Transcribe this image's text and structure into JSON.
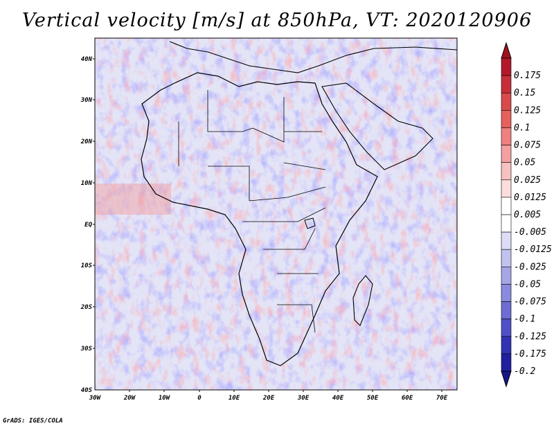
{
  "title": "Vertical velocity [m/s] at 850hPa, VT: 2020120906",
  "credit": "GrADS: IGES/COLA",
  "map": {
    "lat_labels": [
      "40N",
      "30N",
      "20N",
      "10N",
      "EQ",
      "10S",
      "20S",
      "30S",
      "40S"
    ],
    "lon_labels": [
      "30W",
      "20W",
      "10W",
      "0",
      "10E",
      "20E",
      "30E",
      "40E",
      "50E",
      "60E",
      "70E"
    ]
  },
  "colorbar": {
    "levels": [
      {
        "label": "0.175",
        "color": "#b2182b"
      },
      {
        "label": "0.15",
        "color": "#c62f39"
      },
      {
        "label": "0.125",
        "color": "#d94a4a"
      },
      {
        "label": "0.1",
        "color": "#e6605c"
      },
      {
        "label": "0.075",
        "color": "#ef8080"
      },
      {
        "label": "0.05",
        "color": "#f4a0a0"
      },
      {
        "label": "0.025",
        "color": "#f8c0c0"
      },
      {
        "label": "0.0125",
        "color": "#fbdddd"
      },
      {
        "label": "0.005",
        "color": "#ffffff"
      },
      {
        "label": "-0.005",
        "color": "#ffffff"
      },
      {
        "label": "-0.0125",
        "color": "#dcdcf6"
      },
      {
        "label": "-0.025",
        "color": "#c2c2ef"
      },
      {
        "label": "-0.05",
        "color": "#a6a6e6"
      },
      {
        "label": "-0.075",
        "color": "#8a8ade"
      },
      {
        "label": "-0.1",
        "color": "#6d6dd4"
      },
      {
        "label": "-0.125",
        "color": "#5050c8"
      },
      {
        "label": "-0.175",
        "color": "#3232b4"
      },
      {
        "label": "-0.2",
        "color": "#2020a0"
      }
    ],
    "top_color": "#a0131e",
    "bottom_color": "#16168a"
  }
}
